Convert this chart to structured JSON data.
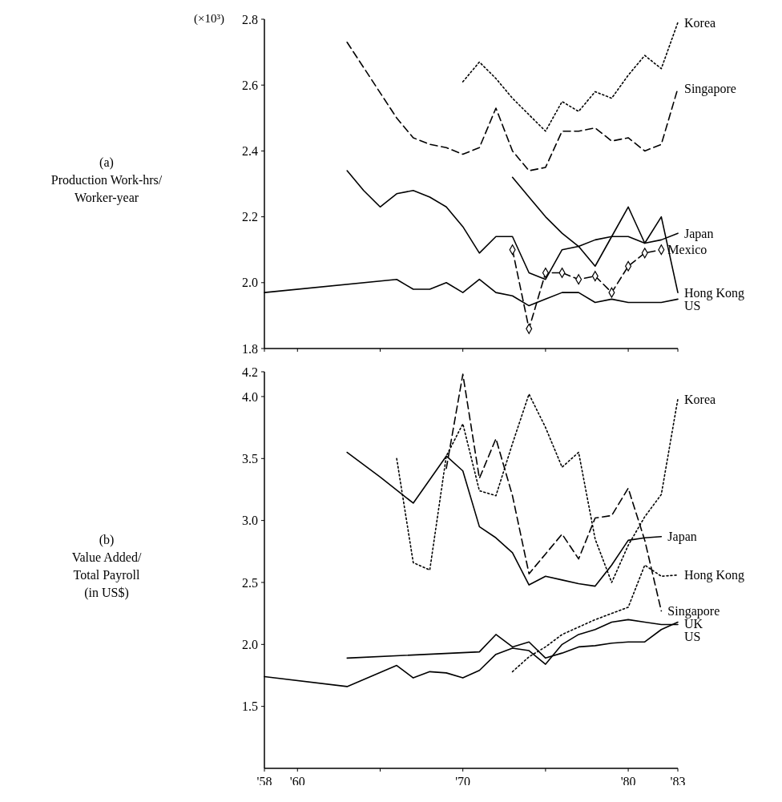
{
  "chart_data": [
    {
      "type": "line",
      "ylabel": "(a)\nProduction Work-hrs/\nWorker-year",
      "annotations": [
        "(×10³)"
      ],
      "xlim": [
        1958,
        1983
      ],
      "xticks": [
        {
          "value": 1958,
          "label": null
        },
        {
          "value": 1960,
          "label": null
        },
        {
          "value": 1965,
          "label": null
        },
        {
          "value": 1970,
          "label": null
        },
        {
          "value": 1975,
          "label": null
        },
        {
          "value": 1980,
          "label": null
        },
        {
          "value": 1983,
          "label": null
        }
      ],
      "tick_labels": "y",
      "ylim": [
        1.8,
        2.8
      ],
      "yticks": [
        1.8,
        {
          "value": 2,
          "label": "2.0"
        },
        2.2,
        2.4,
        2.6,
        2.8
      ],
      "series": [
        {
          "name": "Korea",
          "color": "#000000",
          "line_style": "dotted",
          "x": [
            1970,
            1971,
            1972,
            1973,
            1974,
            1975,
            1976,
            1977,
            1978,
            1979,
            1980,
            1981,
            1982,
            1983
          ],
          "values": [
            2.61,
            2.67,
            2.62,
            2.56,
            2.51,
            2.46,
            2.55,
            2.52,
            2.58,
            2.56,
            2.63,
            2.69,
            2.65,
            2.79
          ]
        },
        {
          "name": "Singapore",
          "color": "#000000",
          "line_style": "dashed",
          "x": [
            1963,
            1966,
            1967,
            1968,
            1969,
            1970,
            1971,
            1972,
            1973,
            1974,
            1975,
            1976,
            1977,
            1978,
            1979,
            1980,
            1981,
            1982,
            1983
          ],
          "values": [
            2.73,
            2.5,
            2.44,
            2.42,
            2.41,
            2.39,
            2.41,
            2.53,
            2.4,
            2.34,
            2.35,
            2.46,
            2.46,
            2.47,
            2.43,
            2.44,
            2.4,
            2.42,
            2.59
          ]
        },
        {
          "name": "Japan",
          "color": "#000000",
          "line_style": "solid",
          "x": [
            1963,
            1964,
            1965,
            1966,
            1967,
            1968,
            1969,
            1970,
            1971,
            1972,
            1973,
            1974,
            1975,
            1976,
            1977,
            1978,
            1979,
            1980,
            1981,
            1982,
            1983
          ],
          "values": [
            2.34,
            2.28,
            2.23,
            2.27,
            2.28,
            2.26,
            2.23,
            2.17,
            2.09,
            2.14,
            2.14,
            2.03,
            2.01,
            2.1,
            2.11,
            2.13,
            2.14,
            2.14,
            2.12,
            2.13,
            2.15
          ]
        },
        {
          "name": "Hong Kong",
          "color": "#000000",
          "line_style": "solid",
          "x": [
            1973,
            1974,
            1975,
            1976,
            1977,
            1978,
            1979,
            1980,
            1981,
            1982,
            1983
          ],
          "values": [
            2.32,
            2.26,
            2.2,
            2.15,
            2.11,
            2.05,
            2.14,
            2.23,
            2.12,
            2.2,
            1.97
          ]
        },
        {
          "name": "Mexico",
          "color": "#000000",
          "line_style": "dashed",
          "marker": "diamond",
          "x": [
            1973,
            1974,
            1975,
            1976,
            1977,
            1978,
            1979,
            1980,
            1981,
            1982
          ],
          "values": [
            2.1,
            1.86,
            2.03,
            2.03,
            2.01,
            2.02,
            1.97,
            2.05,
            2.09,
            2.1
          ]
        },
        {
          "name": "US",
          "color": "#000000",
          "line_style": "solid",
          "x": [
            1958,
            1966,
            1967,
            1968,
            1969,
            1970,
            1971,
            1972,
            1973,
            1974,
            1975,
            1976,
            1977,
            1978,
            1979,
            1980,
            1981,
            1982,
            1983
          ],
          "values": [
            1.97,
            2.01,
            1.98,
            1.98,
            2.0,
            1.97,
            2.01,
            1.97,
            1.96,
            1.93,
            1.95,
            1.97,
            1.97,
            1.94,
            1.95,
            1.94,
            1.94,
            1.94,
            1.95
          ]
        }
      ]
    },
    {
      "type": "line",
      "ylabel": "(b)\nValue Added/\nTotal Payroll\n(in US$)",
      "xlim": [
        1958,
        1983
      ],
      "xticks": [
        {
          "value": 1958,
          "label": "'58"
        },
        {
          "value": 1960,
          "label": "'60"
        },
        {
          "value": 1965,
          "label": null
        },
        {
          "value": 1970,
          "label": "'70"
        },
        {
          "value": 1975,
          "label": null
        },
        {
          "value": 1980,
          "label": "'80"
        },
        {
          "value": 1983,
          "label": "'83"
        }
      ],
      "ylim": [
        1.0,
        4.2
      ],
      "yticks": [
        1.5,
        {
          "value": 2,
          "label": "2.0"
        },
        2.5,
        {
          "value": 3,
          "label": "3.0"
        },
        3.5,
        {
          "value": 4,
          "label": "4.0"
        },
        4.2
      ],
      "series": [
        {
          "name": "Korea",
          "color": "#000000",
          "line_style": "dotted",
          "x": [
            1966,
            1967,
            1968,
            1969,
            1970,
            1971,
            1972,
            1973,
            1974,
            1975,
            1976,
            1977,
            1978,
            1979,
            1980,
            1981,
            1982,
            1983
          ],
          "values": [
            3.5,
            2.66,
            2.6,
            3.52,
            3.78,
            3.24,
            3.2,
            3.62,
            4.02,
            3.75,
            3.43,
            3.55,
            2.85,
            2.5,
            2.8,
            3.03,
            3.21,
            3.98
          ]
        },
        {
          "name": "Japan",
          "color": "#000000",
          "line_style": "solid",
          "x": [
            1963,
            1965,
            1967,
            1969,
            1970,
            1971,
            1972,
            1973,
            1974,
            1975,
            1976,
            1977,
            1978,
            1979,
            1980,
            1981,
            1982
          ],
          "values": [
            3.55,
            3.35,
            3.14,
            3.52,
            3.4,
            2.95,
            2.86,
            2.74,
            2.48,
            2.55,
            2.52,
            2.49,
            2.47,
            2.64,
            2.84,
            2.86,
            2.87
          ]
        },
        {
          "name": "Hong Kong",
          "color": "#000000",
          "line_style": "dotted",
          "x": [
            1973,
            1974,
            1975,
            1976,
            1977,
            1978,
            1979,
            1980,
            1981,
            1982,
            1983
          ],
          "values": [
            1.78,
            1.9,
            1.98,
            2.08,
            2.14,
            2.2,
            2.25,
            2.3,
            2.64,
            2.55,
            2.56
          ]
        },
        {
          "name": "Singapore",
          "color": "#000000",
          "line_style": "dashed",
          "x": [
            1969,
            1970,
            1971,
            1972,
            1973,
            1974,
            1975,
            1976,
            1977,
            1978,
            1979,
            1980,
            1981,
            1982
          ],
          "values": [
            3.42,
            4.18,
            3.34,
            3.66,
            3.2,
            2.57,
            2.73,
            2.89,
            2.69,
            3.02,
            3.04,
            3.26,
            2.84,
            2.27
          ]
        },
        {
          "name": "US",
          "color": "#000000",
          "line_style": "solid",
          "x": [
            1958,
            1963,
            1966,
            1967,
            1968,
            1969,
            1970,
            1971,
            1972,
            1973,
            1974,
            1975,
            1976,
            1977,
            1978,
            1979,
            1980,
            1981,
            1982,
            1983
          ],
          "values": [
            1.74,
            1.66,
            1.83,
            1.73,
            1.78,
            1.77,
            1.73,
            1.79,
            1.92,
            1.97,
            1.95,
            1.84,
            2.0,
            2.08,
            2.12,
            2.18,
            2.2,
            2.18,
            2.16,
            2.16
          ]
        },
        {
          "name": "UK",
          "color": "#000000",
          "line_style": "solid",
          "x": [
            1963,
            1971,
            1972,
            1973,
            1974,
            1975,
            1976,
            1977,
            1978,
            1979,
            1980,
            1981,
            1982,
            1983
          ],
          "values": [
            1.89,
            1.94,
            2.08,
            1.98,
            2.02,
            1.89,
            1.93,
            1.98,
            1.99,
            2.01,
            2.02,
            2.02,
            2.12,
            2.18
          ]
        }
      ]
    }
  ]
}
